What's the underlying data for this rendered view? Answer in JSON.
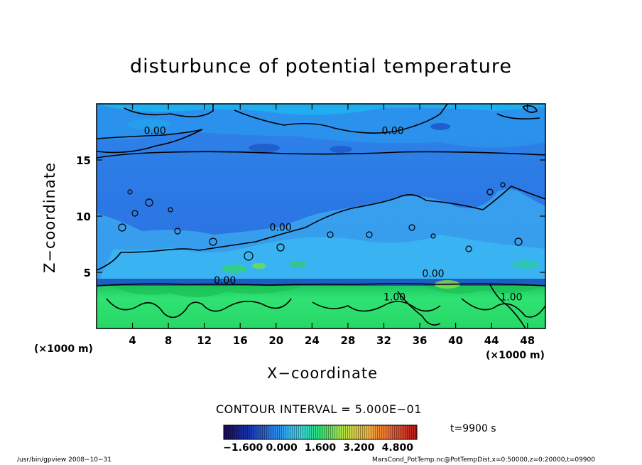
{
  "chart_data": {
    "type": "heatmap",
    "title": "disturbunce of potential temperature",
    "xlabel": "X−coordinate",
    "ylabel": "Z−coordinate",
    "x_unit": "(×1000 m)",
    "x_ticks": [
      4,
      8,
      12,
      16,
      20,
      24,
      28,
      32,
      36,
      40,
      44,
      48
    ],
    "y_ticks": [
      5,
      10,
      15
    ],
    "xlim": [
      0,
      50
    ],
    "ylim": [
      0,
      20
    ],
    "contour_interval": "CONTOUR INTERVAL = 5.000E−01",
    "time": "t=9900 s",
    "contour_labels": [
      {
        "text": "0.00",
        "x": 6.5,
        "y": 17.3
      },
      {
        "text": "0.00",
        "x": 33.0,
        "y": 17.3
      },
      {
        "text": "0.00",
        "x": 20.5,
        "y": 8.7
      },
      {
        "text": "0.00",
        "x": 14.3,
        "y": 4.0
      },
      {
        "text": "0.00",
        "x": 37.5,
        "y": 4.6
      },
      {
        "text": "1.00",
        "x": 33.2,
        "y": 2.5
      },
      {
        "text": "1.00",
        "x": 46.2,
        "y": 2.5
      }
    ],
    "colorbar": {
      "tick_labels": [
        "−1.600",
        "0.000",
        "1.600",
        "3.200",
        "4.800"
      ],
      "range": [
        -2.4,
        5.6
      ]
    },
    "colors": {
      "upper_background": "#2d7be8",
      "upper_light": "#3aa6f0",
      "lower_background": "#2ee070",
      "lower_dark": "#1fcf5c",
      "boundary_band": "#1c5fc0"
    }
  },
  "footer": {
    "left": "/usr/bin/gpview   2008−10−31",
    "right": "MarsCond_PotTemp.nc@PotTempDist,x=0:50000,z=0:20000,t=09900"
  }
}
